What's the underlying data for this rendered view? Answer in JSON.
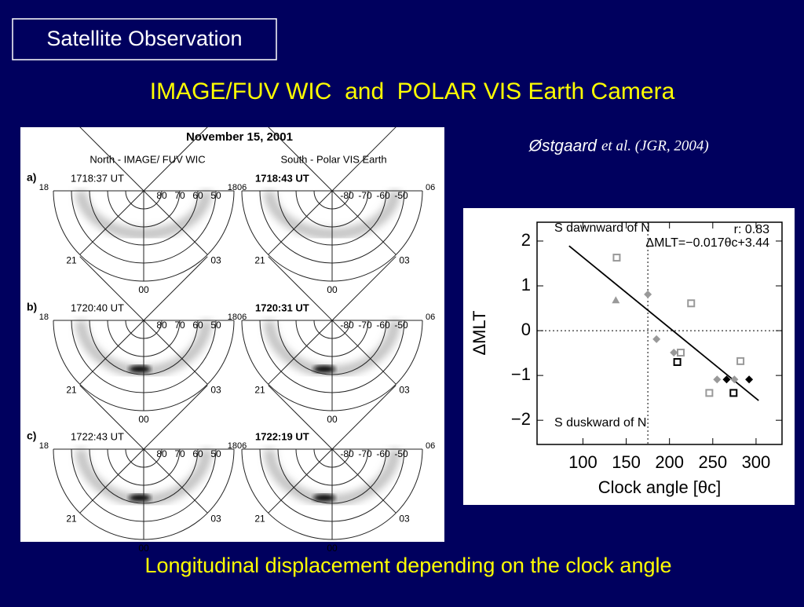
{
  "slide": {
    "header": "Satellite Observation",
    "title": "IMAGE/FUV WIC  and  POLAR VIS Earth Camera",
    "citation_author": "Østgaard",
    "citation_ref": "et al. (JGR, 2004)",
    "caption": "Longitudinal displacement depending on the clock angle"
  },
  "auroral_images": {
    "title": "November 15, 2001",
    "columns": [
      "North - IMAGE/ FUV WIC",
      "South - Polar VIS Earth"
    ],
    "rows": [
      {
        "label": "a)",
        "times": [
          "1718:37 UT",
          "1718:43 UT"
        ]
      },
      {
        "label": "b)",
        "times": [
          "1720:40 UT",
          "1720:31 UT"
        ]
      },
      {
        "label": "c)",
        "times": [
          "1722:43 UT",
          "1722:19 UT"
        ]
      }
    ],
    "north_lat_labels": [
      "80",
      "70",
      "60",
      "50"
    ],
    "south_lat_labels": [
      "-80",
      "-70",
      "-60",
      "-50"
    ],
    "mlt_labels": {
      "dusk": "18",
      "dawn": "06",
      "pre_midnight": "21",
      "post_midnight": "03",
      "midnight": "00"
    }
  },
  "chart_data": {
    "type": "scatter",
    "xlabel": "Clock angle [θc]",
    "ylabel": "ΔMLT",
    "xlim": [
      47,
      330
    ],
    "xticks": [
      100,
      150,
      200,
      250,
      300
    ],
    "ylim": [
      -2.54,
      2.42
    ],
    "yticks": [
      {
        "value": -2,
        "label": "−2"
      },
      {
        "value": -1,
        "label": "−1"
      },
      0,
      1,
      2
    ],
    "annotations": [
      "S dawnward of N",
      "r: 0.83",
      "ΔMLT=−0.017θc+3.44",
      "S duskward of N"
    ],
    "reference_lines": {
      "x": 175,
      "y": 0
    },
    "fit_line": {
      "x": [
        84,
        303
      ],
      "values": [
        1.89,
        -1.56
      ]
    },
    "series": [
      {
        "marker": "square-open",
        "color": "#999999",
        "x": [
          139,
          225,
          213,
          282,
          246
        ],
        "values": [
          1.63,
          0.61,
          -0.49,
          -0.68,
          -1.39
        ]
      },
      {
        "marker": "square-open",
        "color": "#000000",
        "x": [
          209,
          274
        ],
        "values": [
          -0.7,
          -1.39
        ]
      },
      {
        "marker": "diamond",
        "color": "#999999",
        "x": [
          175,
          185,
          205,
          255,
          275
        ],
        "values": [
          0.81,
          -0.19,
          -0.49,
          -1.09,
          -1.09
        ]
      },
      {
        "marker": "triangle",
        "color": "#999999",
        "x": [
          138
        ],
        "values": [
          0.68
        ]
      },
      {
        "marker": "diamond",
        "color": "#000000",
        "x": [
          266,
          292
        ],
        "values": [
          -1.09,
          -1.09
        ]
      }
    ]
  }
}
